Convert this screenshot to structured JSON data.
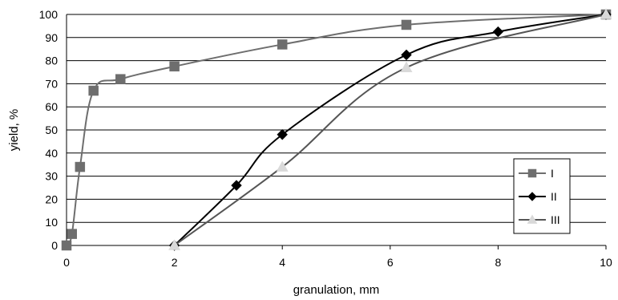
{
  "chart_data": {
    "type": "line",
    "title": "",
    "xlabel": "granulation, mm",
    "ylabel": "yield, %",
    "xlim": [
      0,
      10
    ],
    "ylim": [
      0,
      100
    ],
    "x_ticks": [
      0,
      2,
      4,
      6,
      8,
      10
    ],
    "y_ticks": [
      0,
      10,
      20,
      30,
      40,
      50,
      60,
      70,
      80,
      90,
      100
    ],
    "grid": "horizontal",
    "legend_position": "right",
    "series": [
      {
        "name": "I",
        "marker": "square",
        "color": "#6e6e6e",
        "points": [
          [
            0,
            0
          ],
          [
            0.1,
            5
          ],
          [
            0.25,
            34
          ],
          [
            0.5,
            67
          ],
          [
            1,
            72
          ],
          [
            2,
            77.5
          ],
          [
            4,
            87
          ],
          [
            6.3,
            95.5
          ],
          [
            10,
            100
          ]
        ]
      },
      {
        "name": "II",
        "marker": "diamond",
        "color": "#000000",
        "points": [
          [
            2,
            0
          ],
          [
            3.15,
            26
          ],
          [
            4,
            48
          ],
          [
            6.3,
            82.5
          ],
          [
            8,
            92.5
          ],
          [
            10,
            100
          ]
        ]
      },
      {
        "name": "III",
        "marker": "triangle",
        "color": "#555555",
        "marker_fill": "#d9d9d9",
        "points": [
          [
            2,
            0
          ],
          [
            4,
            34
          ],
          [
            6.3,
            77
          ],
          [
            10,
            100
          ]
        ]
      }
    ]
  }
}
